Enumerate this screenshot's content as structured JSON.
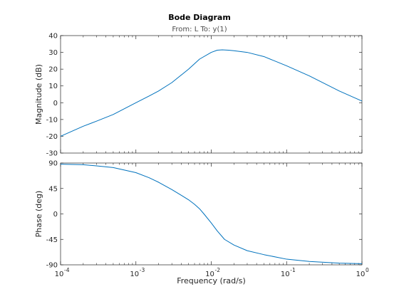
{
  "chart_data": {
    "type": "line",
    "title": "Bode Diagram",
    "subtitle": "From: L  To: y(1)",
    "xlabel": "Frequency  (rad/s)",
    "xscale": "log",
    "xlim": [
      0.0001,
      1
    ],
    "x_tick_labels": [
      "10",
      "10",
      "10",
      "10",
      "10"
    ],
    "x_tick_exponents": [
      "-4",
      "-3",
      "-2",
      "-1",
      "0"
    ],
    "line_color": "#0072bd",
    "grid": false,
    "panels": [
      {
        "ylabel": "Magnitude (dB)",
        "ylim": [
          -30,
          40
        ],
        "yticks": [
          -30,
          -20,
          -10,
          0,
          10,
          20,
          30,
          40
        ],
        "series": [
          {
            "x": [
              0.0001,
              0.0002,
              0.0003,
              0.0005,
              0.001,
              0.0015,
              0.002,
              0.003,
              0.005,
              0.007,
              0.01,
              0.012,
              0.014,
              0.017,
              0.02,
              0.03,
              0.05,
              0.1,
              0.2,
              0.5,
              1
            ],
            "values": [
              -20,
              -14,
              -11,
              -7,
              0,
              4,
              7,
              12,
              20,
              26,
              30,
              31.3,
              31.5,
              31.3,
              31,
              30,
              27.5,
              22,
              16,
              7,
              1
            ]
          }
        ]
      },
      {
        "ylabel": "Phase (deg)",
        "ylim": [
          -90,
          90
        ],
        "yticks": [
          -90,
          -45,
          0,
          45,
          90
        ],
        "series": [
          {
            "x": [
              0.0001,
              0.0002,
              0.0003,
              0.0005,
              0.001,
              0.0015,
              0.002,
              0.003,
              0.004,
              0.005,
              0.006,
              0.007,
              0.008,
              0.01,
              0.012,
              0.015,
              0.02,
              0.03,
              0.05,
              0.1,
              0.2,
              0.5,
              1
            ],
            "values": [
              88,
              87,
              85,
              82,
              73,
              64,
              56,
              43,
              33,
              25,
              17,
              9,
              0,
              -16,
              -30,
              -45,
              -55,
              -65,
              -72,
              -80,
              -84,
              -87,
              -88
            ]
          }
        ]
      }
    ]
  }
}
